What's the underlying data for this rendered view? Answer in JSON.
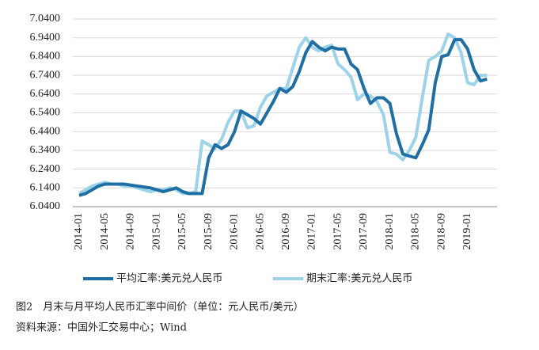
{
  "chart_data": {
    "type": "line",
    "categories": [
      "2014-01",
      null,
      null,
      null,
      "2014-05",
      null,
      null,
      null,
      "2014-09",
      null,
      null,
      null,
      "2015-01",
      null,
      null,
      null,
      "2015-05",
      null,
      null,
      null,
      "2015-09",
      null,
      null,
      null,
      "2016-01",
      null,
      null,
      null,
      "2016-05",
      null,
      null,
      null,
      "2016-09",
      null,
      null,
      null,
      "2017-01",
      null,
      null,
      null,
      "2017-05",
      null,
      null,
      null,
      "2017-09",
      null,
      null,
      null,
      "2018-01",
      null,
      null,
      null,
      "2018-05",
      null,
      null,
      null,
      "2018-09",
      null,
      null,
      null,
      "2019-01",
      null,
      null,
      null
    ],
    "series": [
      {
        "name": "平均汇率:美元兑人民币",
        "color": "#1f6fa5",
        "values": [
          6.1,
          6.11,
          6.13,
          6.15,
          6.16,
          6.16,
          6.16,
          6.16,
          6.155,
          6.15,
          6.145,
          6.14,
          6.13,
          6.12,
          6.13,
          6.14,
          6.12,
          6.11,
          6.11,
          6.11,
          6.3,
          6.37,
          6.35,
          6.37,
          6.44,
          6.55,
          6.53,
          6.51,
          6.48,
          6.54,
          6.6,
          6.67,
          6.65,
          6.68,
          6.76,
          6.86,
          6.92,
          6.89,
          6.87,
          6.89,
          6.88,
          6.88,
          6.8,
          6.77,
          6.67,
          6.59,
          6.62,
          6.62,
          6.59,
          6.43,
          6.32,
          6.31,
          6.3,
          6.37,
          6.45,
          6.7,
          6.84,
          6.85,
          6.93,
          6.93,
          6.88,
          6.77,
          6.71,
          6.72
        ]
      },
      {
        "name": "期末汇率:美元兑人民币",
        "color": "#9dd3ea",
        "values": [
          6.11,
          6.13,
          6.15,
          6.16,
          6.17,
          6.16,
          6.16,
          6.15,
          6.15,
          6.14,
          6.13,
          6.12,
          6.13,
          6.13,
          6.14,
          6.13,
          6.11,
          6.11,
          6.12,
          6.39,
          6.37,
          6.35,
          6.4,
          6.49,
          6.55,
          6.55,
          6.46,
          6.47,
          6.57,
          6.63,
          6.65,
          6.67,
          6.67,
          6.78,
          6.89,
          6.94,
          6.89,
          6.87,
          6.89,
          6.9,
          6.8,
          6.77,
          6.73,
          6.61,
          6.64,
          6.63,
          6.6,
          6.53,
          6.33,
          6.32,
          6.29,
          6.34,
          6.41,
          6.62,
          6.82,
          6.84,
          6.87,
          6.96,
          6.94,
          6.86,
          6.7,
          6.69,
          6.74,
          6.74
        ]
      }
    ],
    "ylim": [
      6.04,
      7.04
    ],
    "yticks": [
      {
        "value": 6.04,
        "label": "6.0400"
      },
      {
        "value": 6.14,
        "label": "6.1400"
      },
      {
        "value": 6.24,
        "label": "6.2400"
      },
      {
        "value": 6.34,
        "label": "6.3400"
      },
      {
        "value": 6.44,
        "label": "6.4400"
      },
      {
        "value": 6.54,
        "label": "6.5400"
      },
      {
        "value": 6.64,
        "label": "6.6400"
      },
      {
        "value": 6.74,
        "label": "6.7400"
      },
      {
        "value": 6.84,
        "label": "6.8400"
      },
      {
        "value": 6.94,
        "label": "6.9400"
      },
      {
        "value": 7.04,
        "label": "7.0400"
      }
    ],
    "grid": true,
    "legend": "bottom",
    "caption": "图2　月末与月平均人民币汇率中间价（单位：元人民币/美元）",
    "source": "资料来源：中国外汇交易中心；Wind"
  }
}
